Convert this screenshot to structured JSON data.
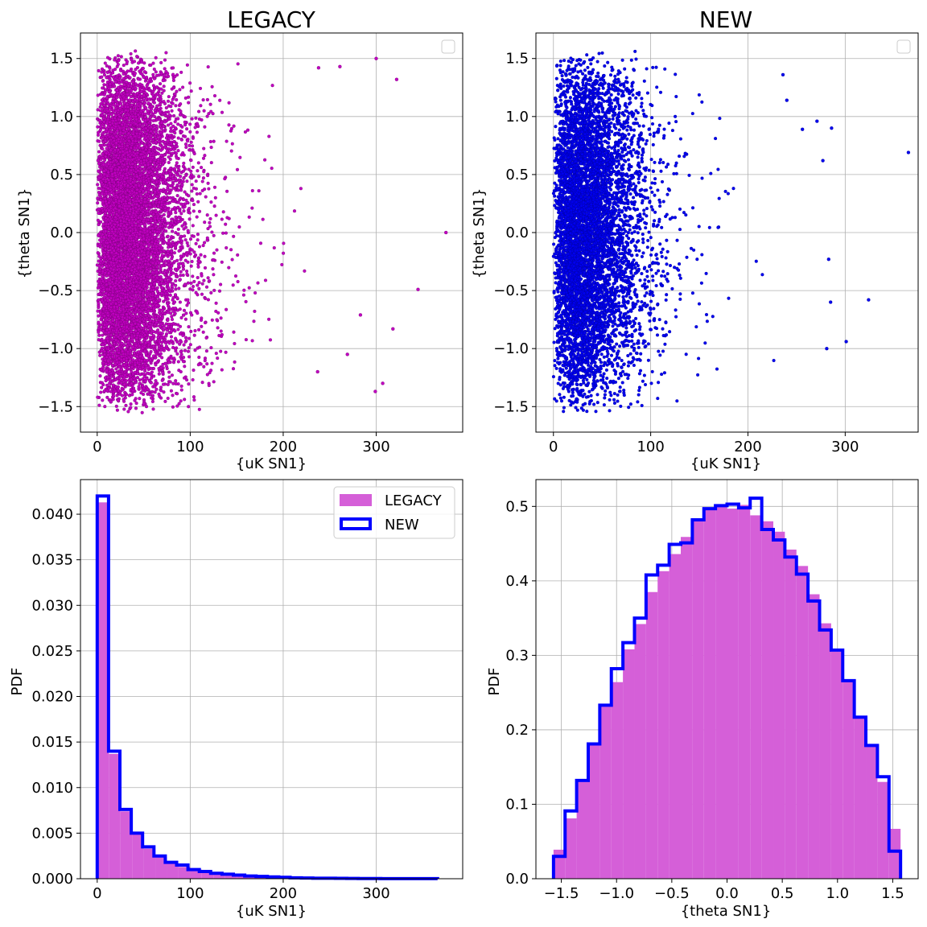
{
  "chart_data": [
    {
      "type": "scatter",
      "title": "LEGACY",
      "xlabel": "{uK  SN1}",
      "ylabel": "{theta SN1}",
      "xlim": [
        -18,
        393
      ],
      "ylim": [
        -1.72,
        1.72
      ],
      "xticks": [
        0,
        100,
        200,
        300
      ],
      "xtick_labels": [
        "0",
        "100",
        "200",
        "300"
      ],
      "yticks": [
        -1.5,
        -1.0,
        -0.5,
        0.0,
        0.5,
        1.0,
        1.5
      ],
      "ytick_labels": [
        "−1.5",
        "−1.0",
        "−0.5",
        "0.0",
        "0.5",
        "1.0",
        "1.5"
      ],
      "grid": true,
      "legend": "top-right (empty)",
      "color": "#bf00bf",
      "edge_color": "#6a006a",
      "points_description_range": {
        "x": [
          0,
          375
        ],
        "y": [
          -1.57,
          1.57
        ]
      },
      "sample_outliers": [
        [
          375,
          0.0
        ],
        [
          345,
          -0.49
        ],
        [
          322,
          1.32
        ],
        [
          318,
          -0.83
        ],
        [
          307,
          -1.3
        ],
        [
          300,
          1.5
        ],
        [
          299,
          -1.37
        ],
        [
          283,
          -0.71
        ],
        [
          269,
          -1.05
        ],
        [
          261,
          1.43
        ],
        [
          238,
          1.42
        ],
        [
          237,
          -1.2
        ]
      ]
    },
    {
      "type": "scatter",
      "title": "NEW",
      "xlabel": "{uK  SN1}",
      "ylabel": "{theta SN1}",
      "xlim": [
        -18,
        375
      ],
      "ylim": [
        -1.72,
        1.72
      ],
      "xticks": [
        0,
        100,
        200,
        300
      ],
      "xtick_labels": [
        "0",
        "100",
        "200",
        "300"
      ],
      "yticks": [
        -1.5,
        -1.0,
        -0.5,
        0.0,
        0.5,
        1.0,
        1.5
      ],
      "ytick_labels": [
        "−1.5",
        "−1.0",
        "−0.5",
        "0.0",
        "0.5",
        "1.0",
        "1.5"
      ],
      "grid": true,
      "legend": "top-right (empty)",
      "color": "#0000ee",
      "edge_color": "#00008b",
      "points_description_range": {
        "x": [
          0,
          365
        ],
        "y": [
          -1.57,
          1.57
        ]
      },
      "sample_outliers": [
        [
          365,
          0.69
        ],
        [
          324,
          -0.58
        ],
        [
          301,
          -0.94
        ],
        [
          286,
          0.9
        ],
        [
          285,
          -0.6
        ],
        [
          283,
          -0.23
        ],
        [
          281,
          -1.0
        ],
        [
          277,
          0.62
        ],
        [
          271,
          0.96
        ],
        [
          256,
          0.89
        ],
        [
          240,
          1.14
        ],
        [
          236,
          1.36
        ]
      ]
    },
    {
      "type": "bar",
      "subtype": "histogram",
      "xlabel": "{uK  SN1}",
      "ylabel": "PDF",
      "xlim": [
        -18,
        393
      ],
      "ylim": [
        0,
        0.0438
      ],
      "xticks": [
        0,
        100,
        200,
        300
      ],
      "xtick_labels": [
        "0",
        "100",
        "200",
        "300"
      ],
      "yticks": [
        0,
        0.005,
        0.01,
        0.015,
        0.02,
        0.025,
        0.03,
        0.035,
        0.04
      ],
      "ytick_labels": [
        "0.000",
        "0.005",
        "0.010",
        "0.015",
        "0.020",
        "0.025",
        "0.030",
        "0.035",
        "0.040"
      ],
      "grid": true,
      "legend": "top-right",
      "bin_edges": [
        0,
        12.5,
        25,
        37.5,
        50,
        62.5,
        75,
        87.5,
        100,
        112.5,
        125,
        137.5,
        150,
        162.5,
        175,
        187.5,
        200,
        212.5,
        225,
        237.5,
        250,
        262.5,
        275,
        287.5,
        300,
        312.5,
        325,
        337.5,
        350,
        362.5,
        375
      ],
      "series": [
        {
          "name": "LEGACY",
          "style": "filled",
          "color": "#d55fd8",
          "values": [
            0.0413,
            0.0137,
            0.0074,
            0.0049,
            0.0033,
            0.0024,
            0.0017,
            0.0013,
            0.001,
            0.0007,
            0.0005,
            0.0004,
            0.0003,
            0.00025,
            0.0002,
            0.00015,
            0.0001,
            8e-05,
            6e-05,
            5e-05,
            4e-05,
            3e-05,
            2e-05,
            2e-05,
            1e-05,
            1e-05,
            1e-05,
            1e-05,
            1e-05,
            1e-05
          ]
        },
        {
          "name": "NEW",
          "style": "step",
          "color": "#0000ff",
          "bin_edges": [
            0,
            12.2,
            24.4,
            36.6,
            48.8,
            61,
            73.2,
            85.4,
            97.6,
            109.8,
            122,
            134.2,
            146.4,
            158.6,
            170.8,
            183,
            195.2,
            207.4,
            219.6,
            231.8,
            244,
            256.2,
            268.4,
            280.6,
            292.8,
            305,
            317.2,
            329.4,
            341.6,
            353.8,
            366
          ],
          "values": [
            0.042,
            0.014,
            0.0076,
            0.005,
            0.0035,
            0.0025,
            0.0018,
            0.0015,
            0.001,
            0.0008,
            0.0006,
            0.0005,
            0.0004,
            0.0003,
            0.00025,
            0.0002,
            0.00015,
            0.0001,
            8e-05,
            6e-05,
            5e-05,
            4e-05,
            3e-05,
            2e-05,
            2e-05,
            1e-05,
            1e-05,
            1e-05,
            1e-05,
            1e-05
          ]
        }
      ]
    },
    {
      "type": "bar",
      "subtype": "histogram",
      "xlabel": "{theta SN1}",
      "ylabel": "PDF",
      "xlim": [
        -1.73,
        1.73
      ],
      "ylim": [
        0,
        0.536
      ],
      "xticks": [
        -1.5,
        -1.0,
        -0.5,
        0.0,
        0.5,
        1.0,
        1.5
      ],
      "xtick_labels": [
        "−1.5",
        "−1.0",
        "−0.5",
        "0.0",
        "0.5",
        "1.0",
        "1.5"
      ],
      "yticks": [
        0,
        0.1,
        0.2,
        0.3,
        0.4,
        0.5
      ],
      "ytick_labels": [
        "0.0",
        "0.1",
        "0.2",
        "0.3",
        "0.4",
        "0.5"
      ],
      "grid": true,
      "bin_edges": [
        -1.5708,
        -1.4661,
        -1.3614,
        -1.2566,
        -1.1519,
        -1.0472,
        -0.9425,
        -0.8378,
        -0.733,
        -0.6283,
        -0.5236,
        -0.4189,
        -0.3142,
        -0.2094,
        -0.1047,
        0.0,
        0.1047,
        0.2094,
        0.3142,
        0.4189,
        0.5236,
        0.6283,
        0.733,
        0.8378,
        0.9425,
        1.0472,
        1.1519,
        1.2566,
        1.3614,
        1.4661,
        1.5708
      ],
      "series": [
        {
          "name": "LEGACY",
          "style": "filled",
          "color": "#d55fd8",
          "values": [
            0.039,
            0.081,
            0.13,
            0.181,
            0.232,
            0.264,
            0.308,
            0.342,
            0.385,
            0.413,
            0.436,
            0.459,
            0.48,
            0.496,
            0.502,
            0.497,
            0.502,
            0.488,
            0.48,
            0.466,
            0.442,
            0.42,
            0.382,
            0.343,
            0.305,
            0.268,
            0.218,
            0.178,
            0.13,
            0.067
          ]
        },
        {
          "name": "NEW",
          "style": "step",
          "color": "#0000ff",
          "values": [
            0.03,
            0.091,
            0.132,
            0.181,
            0.233,
            0.282,
            0.317,
            0.35,
            0.408,
            0.421,
            0.449,
            0.451,
            0.482,
            0.497,
            0.501,
            0.503,
            0.498,
            0.511,
            0.469,
            0.455,
            0.432,
            0.409,
            0.373,
            0.334,
            0.307,
            0.266,
            0.217,
            0.179,
            0.137,
            0.037
          ]
        }
      ]
    }
  ]
}
